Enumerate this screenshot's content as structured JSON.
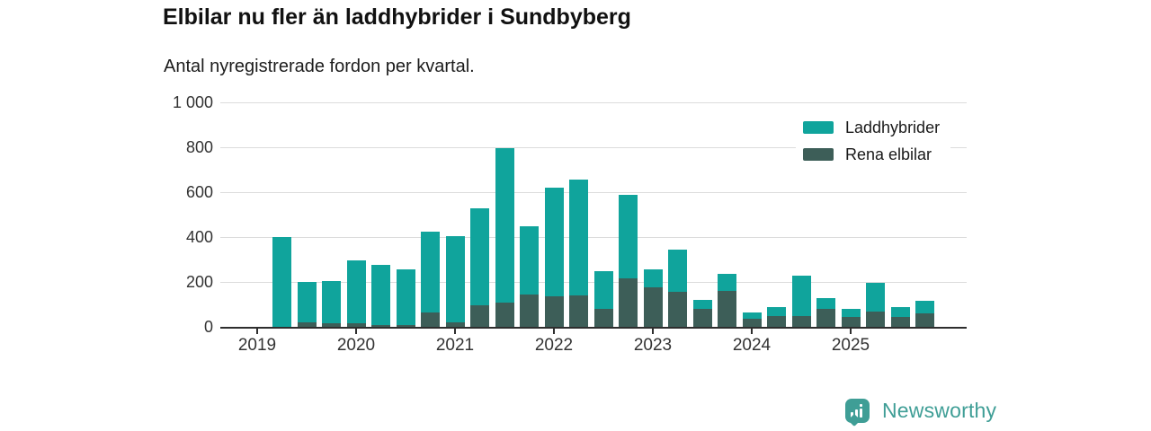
{
  "title": "Elbilar nu fler än laddhybrider i Sundbyberg",
  "subtitle": "Antal nyregistrerade fordon per kvartal.",
  "legend": {
    "position": "top-right",
    "items": [
      {
        "label": "Laddhybrider",
        "color": "#10a49c"
      },
      {
        "label": "Rena elbilar",
        "color": "#3d5e58"
      }
    ]
  },
  "branding": {
    "name": "Newsworthy",
    "color": "#3f9e96",
    "icon": "newsworthy-pin-icon"
  },
  "colors": {
    "background": "#ffffff",
    "title_text": "#111111",
    "axis_text": "#333333",
    "axis_line": "#2e2e2e",
    "gridline": "#dcdcdc",
    "laddhybrider": "#10a49c",
    "rena_elbilar": "#3d5e58"
  },
  "chart_data": {
    "type": "bar",
    "stacked": true,
    "title": "Elbilar nu fler än laddhybrider i Sundbyberg",
    "subtitle": "Antal nyregistrerade fordon per kvartal.",
    "categories": [
      "2019 Q1",
      "2019 Q2",
      "2019 Q3",
      "2019 Q4",
      "2020 Q1",
      "2020 Q2",
      "2020 Q3",
      "2020 Q4",
      "2021 Q1",
      "2021 Q2",
      "2021 Q3",
      "2021 Q4",
      "2022 Q1",
      "2022 Q2",
      "2022 Q3",
      "2022 Q4",
      "2023 Q1",
      "2023 Q2",
      "2023 Q3",
      "2023 Q4",
      "2024 Q1",
      "2024 Q2",
      "2024 Q3",
      "2024 Q4",
      "2025 Q1",
      "2025 Q2",
      "2025 Q3",
      "2025 Q4"
    ],
    "series": [
      {
        "name": "Rena elbilar",
        "color": "#3d5e58",
        "stack_order": "bottom",
        "values": [
          0,
          0,
          20,
          15,
          15,
          10,
          10,
          65,
          20,
          95,
          110,
          145,
          135,
          140,
          80,
          215,
          175,
          155,
          80,
          160,
          35,
          50,
          50,
          80,
          45,
          70,
          45,
          60
        ]
      },
      {
        "name": "Laddhybrider",
        "color": "#10a49c",
        "stack_order": "top",
        "values": [
          0,
          400,
          180,
          190,
          280,
          265,
          245,
          360,
          385,
          435,
          685,
          305,
          485,
          515,
          170,
          375,
          80,
          190,
          40,
          75,
          30,
          40,
          180,
          50,
          35,
          125,
          45,
          55
        ]
      }
    ],
    "x_axis": {
      "tick_labels": [
        "2019",
        "2020",
        "2021",
        "2022",
        "2023",
        "2024",
        "2025"
      ],
      "ticks_every_n_categories": 4
    },
    "y_axis": {
      "min": 0,
      "max": 1000,
      "ticks": [
        0,
        200,
        400,
        600,
        800,
        1000
      ],
      "tick_labels": [
        "0",
        "200",
        "400",
        "600",
        "800",
        "1 000"
      ]
    },
    "grid": "horizontal",
    "legend_position": "top-right"
  }
}
